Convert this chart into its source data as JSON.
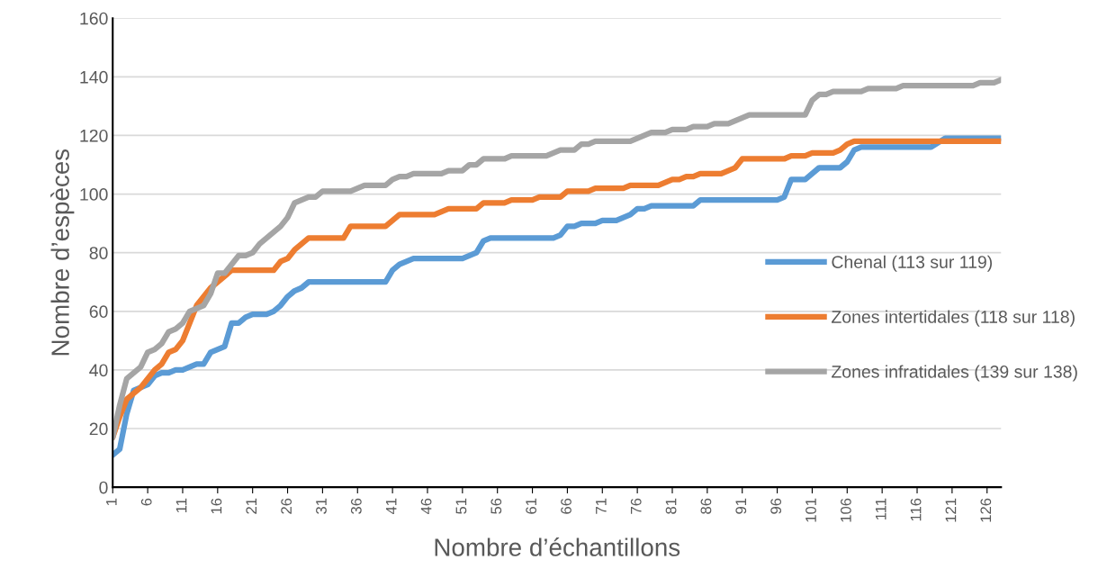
{
  "chart_data": {
    "type": "line",
    "xlabel": "Nombre d’échantillons",
    "ylabel": "Nombre d’espèces",
    "xlim": [
      1,
      128
    ],
    "xticks": [
      1,
      6,
      11,
      16,
      21,
      26,
      31,
      36,
      41,
      46,
      51,
      56,
      61,
      66,
      71,
      76,
      81,
      86,
      91,
      96,
      101,
      106,
      111,
      116,
      121,
      126
    ],
    "ylim": [
      0,
      160
    ],
    "yticks": [
      0,
      20,
      40,
      60,
      80,
      100,
      120,
      140,
      160
    ],
    "grid": "y",
    "legend": "right",
    "marker": "none",
    "line_style": "solid",
    "series": [
      {
        "name": "Chenal (113 sur 119)",
        "color": "#5b9bd5",
        "x": [
          1,
          2,
          3,
          4,
          5,
          6,
          7,
          8,
          9,
          10,
          11,
          12,
          13,
          14,
          15,
          16,
          17,
          18,
          19,
          20,
          21,
          23,
          24,
          25,
          26,
          27,
          28,
          29,
          40,
          41,
          42,
          43,
          44,
          51,
          52,
          53,
          54,
          55,
          64,
          65,
          66,
          67,
          68,
          70,
          71,
          73,
          74,
          75,
          76,
          77,
          78,
          84,
          85,
          96,
          97,
          98,
          100,
          102,
          105,
          106,
          107,
          108,
          118,
          120,
          128
        ],
        "values": [
          11,
          13,
          25,
          33,
          34,
          35,
          38,
          39,
          39,
          40,
          40,
          41,
          42,
          42,
          46,
          47,
          48,
          56,
          56,
          58,
          59,
          59,
          60,
          62,
          65,
          67,
          68,
          70,
          70,
          74,
          76,
          77,
          78,
          78,
          79,
          80,
          84,
          85,
          85,
          86,
          89,
          89,
          90,
          90,
          91,
          91,
          92,
          93,
          95,
          95,
          96,
          96,
          98,
          98,
          99,
          105,
          105,
          109,
          109,
          111,
          115,
          116,
          116,
          119,
          119
        ]
      },
      {
        "name": "Zones intertidales (118 sur 118)",
        "color": "#ed7d31",
        "x": [
          1,
          2,
          3,
          4,
          5,
          6,
          7,
          8,
          9,
          10,
          11,
          12,
          13,
          14,
          15,
          16,
          17,
          18,
          24,
          25,
          26,
          27,
          28,
          29,
          34,
          35,
          40,
          41,
          42,
          47,
          48,
          49,
          53,
          54,
          57,
          58,
          61,
          62,
          65,
          66,
          69,
          70,
          74,
          75,
          79,
          80,
          81,
          82,
          83,
          84,
          85,
          88,
          89,
          90,
          91,
          97,
          98,
          100,
          101,
          104,
          105,
          106,
          107,
          128
        ],
        "values": [
          17,
          24,
          30,
          32,
          34,
          37,
          40,
          42,
          46,
          47,
          50,
          56,
          62,
          65,
          68,
          70,
          72,
          74,
          74,
          77,
          78,
          81,
          83,
          85,
          85,
          89,
          89,
          91,
          93,
          93,
          94,
          95,
          95,
          97,
          97,
          98,
          98,
          99,
          99,
          101,
          101,
          102,
          102,
          103,
          103,
          104,
          105,
          105,
          106,
          106,
          107,
          107,
          108,
          109,
          112,
          112,
          113,
          113,
          114,
          114,
          115,
          117,
          118,
          118
        ]
      },
      {
        "name": "Zones infratidales (139 sur 138)",
        "color": "#a5a5a5",
        "x": [
          1,
          2,
          3,
          4,
          5,
          6,
          7,
          8,
          9,
          10,
          11,
          12,
          13,
          14,
          15,
          16,
          17,
          18,
          19,
          20,
          21,
          22,
          23,
          24,
          25,
          26,
          27,
          28,
          29,
          30,
          31,
          35,
          36,
          37,
          40,
          41,
          42,
          43,
          44,
          48,
          49,
          51,
          52,
          53,
          54,
          57,
          58,
          63,
          64,
          65,
          67,
          68,
          69,
          70,
          75,
          76,
          77,
          78,
          80,
          81,
          83,
          84,
          86,
          87,
          89,
          90,
          92,
          100,
          101,
          102,
          103,
          104,
          108,
          109,
          113,
          114,
          124,
          125,
          127,
          128
        ],
        "values": [
          17,
          28,
          37,
          39,
          41,
          46,
          47,
          49,
          53,
          54,
          56,
          60,
          61,
          62,
          66,
          73,
          73,
          76,
          79,
          79,
          80,
          83,
          85,
          87,
          89,
          92,
          97,
          98,
          99,
          99,
          101,
          101,
          102,
          103,
          103,
          105,
          106,
          106,
          107,
          107,
          108,
          108,
          110,
          110,
          112,
          112,
          113,
          113,
          114,
          115,
          115,
          117,
          117,
          118,
          118,
          119,
          120,
          121,
          121,
          122,
          122,
          123,
          123,
          124,
          124,
          125,
          127,
          127,
          132,
          134,
          134,
          135,
          135,
          136,
          136,
          137,
          137,
          138,
          138,
          139
        ]
      }
    ]
  }
}
